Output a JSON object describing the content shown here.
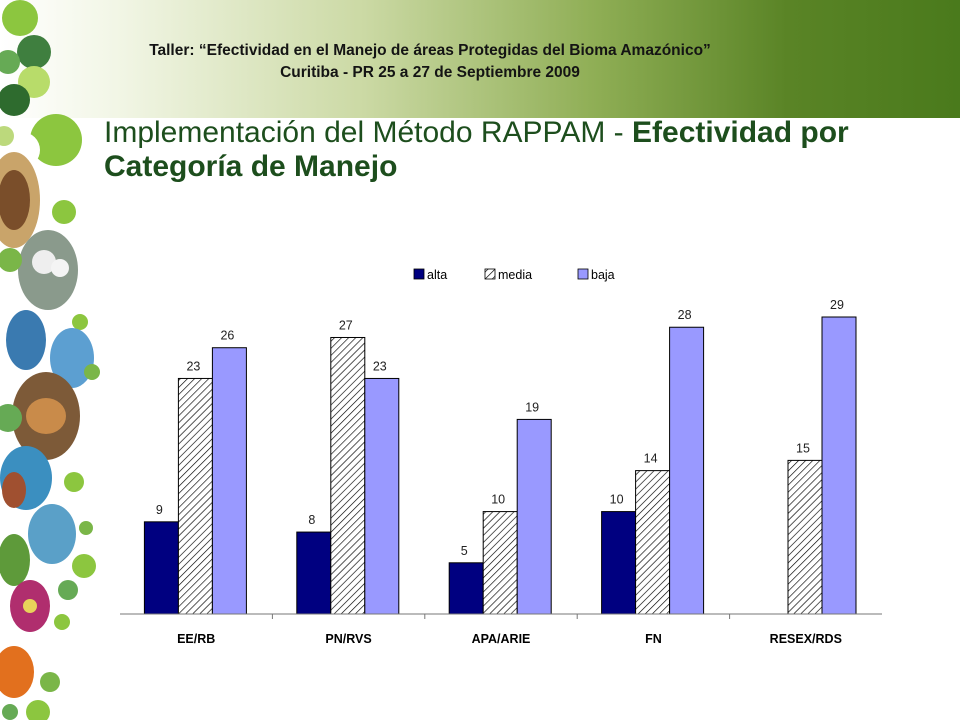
{
  "header": {
    "line1": "Taller: “Efectividad en el Manejo de áreas Protegidas del  Bioma Amazónico”",
    "line2": "Curitiba - PR 25 a 27 de Septiembre 2009"
  },
  "title": {
    "normal": "Implementación del Método RAPPAM - ",
    "bold": "Efectividad por Categoría de Manejo"
  },
  "colors": {
    "alta": "#000080",
    "media_hatch": "#000000",
    "baja": "#9999ff",
    "title_green": "#1d4e1d",
    "banner_green": "#4a7a1c"
  },
  "chart_data": {
    "type": "bar",
    "categories": [
      "EE/RB",
      "PN/RVS",
      "APA/ARIE",
      "FN",
      "RESEX/RDS"
    ],
    "series": [
      {
        "name": "alta",
        "values": [
          9,
          8,
          5,
          10,
          null
        ]
      },
      {
        "name": "media",
        "values": [
          23,
          27,
          10,
          14,
          15
        ]
      },
      {
        "name": "baja",
        "values": [
          26,
          23,
          19,
          28,
          29
        ]
      }
    ],
    "ylim": [
      0,
      29
    ],
    "legend": "top-center",
    "grid": false,
    "data_labels": true
  }
}
